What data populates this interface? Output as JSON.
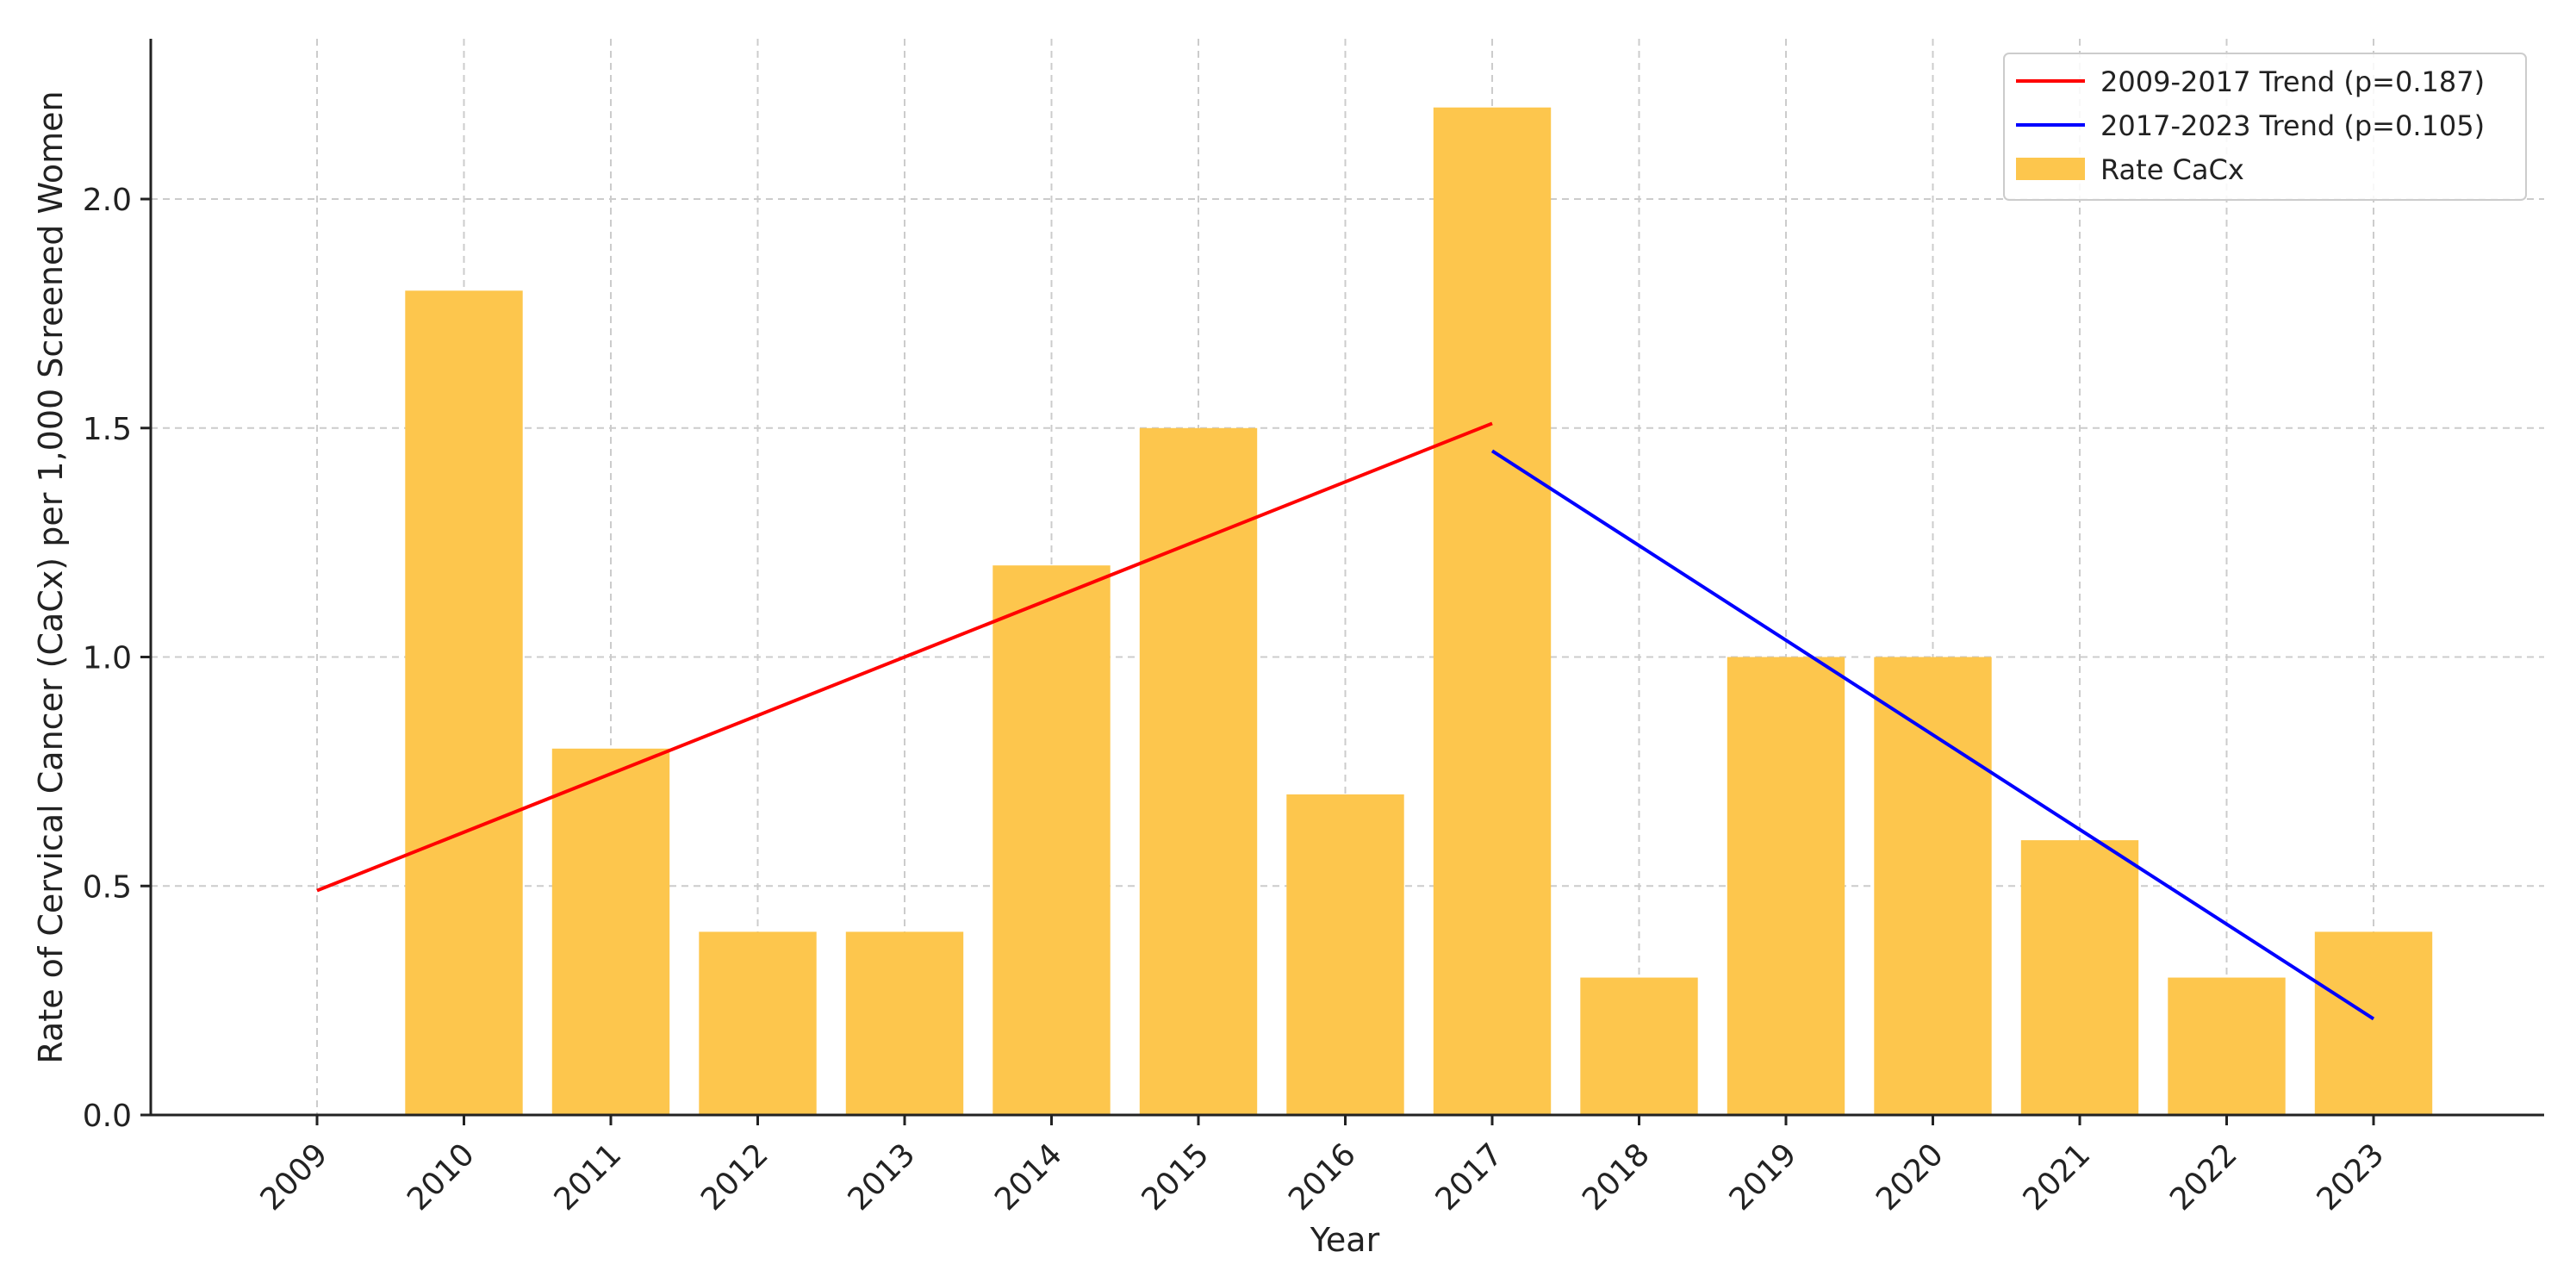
{
  "chart_data": {
    "type": "bar",
    "categories": [
      "2009",
      "2010",
      "2011",
      "2012",
      "2013",
      "2014",
      "2015",
      "2016",
      "2017",
      "2018",
      "2019",
      "2020",
      "2021",
      "2022",
      "2023"
    ],
    "series": [
      {
        "name": "Rate CaCx",
        "type": "bar",
        "color": "#fdc64d",
        "values": [
          0.0,
          1.8,
          0.8,
          0.4,
          0.4,
          1.2,
          1.5,
          0.7,
          2.2,
          0.3,
          1.0,
          1.0,
          0.6,
          0.3,
          0.4
        ]
      },
      {
        "name": "2009-2017 Trend (p=0.187)",
        "type": "line",
        "color": "#ff0000",
        "x": [
          "2009",
          "2017"
        ],
        "values": [
          0.49,
          1.51
        ]
      },
      {
        "name": "2017-2023 Trend (p=0.105)",
        "type": "line",
        "color": "#0000ff",
        "x": [
          "2017",
          "2023"
        ],
        "values": [
          1.45,
          0.21
        ]
      }
    ],
    "xlabel": "Year",
    "ylabel": "Rate of Cervical Cancer (CaCx) per 1,000 Screened Women",
    "ylim": [
      0,
      2.35
    ],
    "yticks": [
      "0.0",
      "0.5",
      "1.0",
      "1.5",
      "2.0"
    ],
    "grid": true,
    "legend_position": "top-right",
    "legend_order": [
      1,
      2,
      0
    ]
  }
}
